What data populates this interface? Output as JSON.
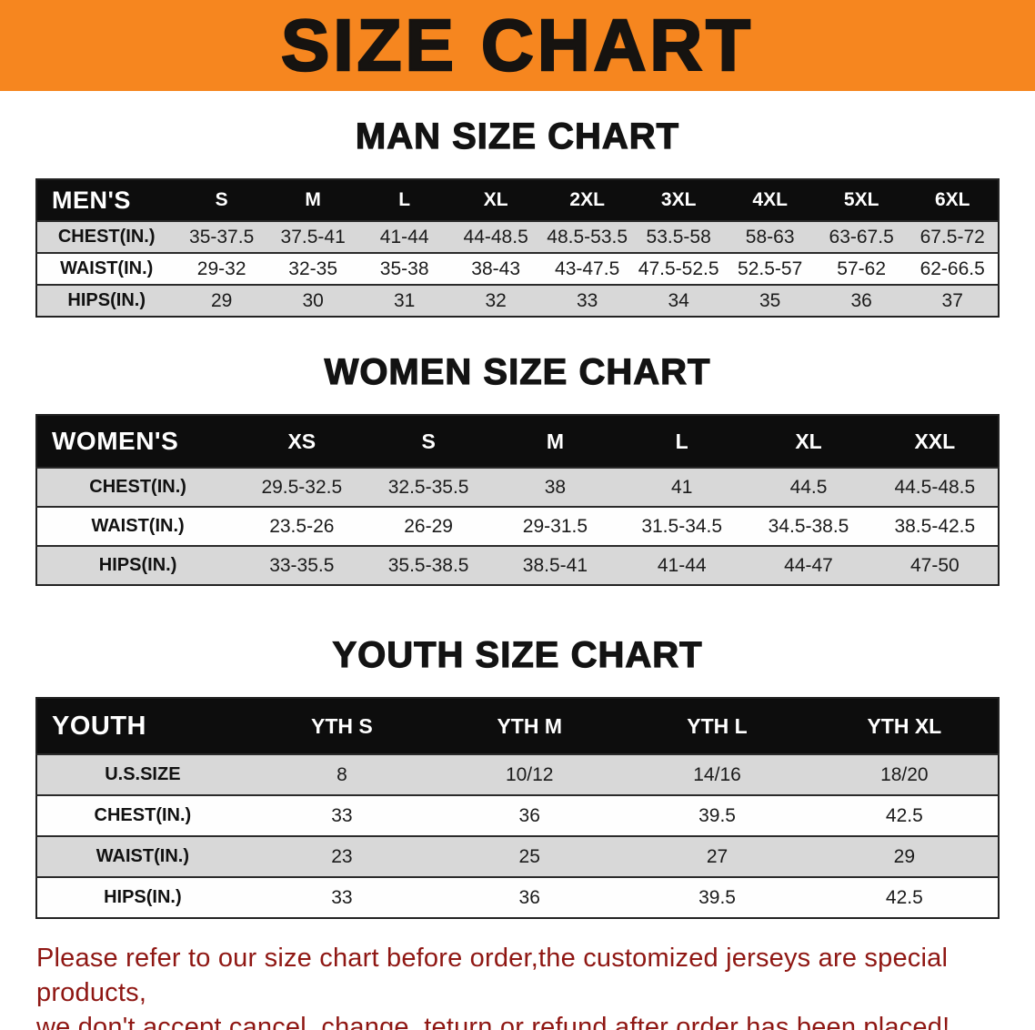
{
  "banner": {
    "title": "SIZE CHART"
  },
  "colors": {
    "banner_orange": "#f6861f",
    "table_header_black": "#0d0d0d",
    "row_stripe_gray": "#d8d8d8",
    "note_red": "#8f1713"
  },
  "sections": {
    "men": {
      "title": "MAN SIZE CHART",
      "table": {
        "header": [
          "MEN'S",
          "S",
          "M",
          "L",
          "XL",
          "2XL",
          "3XL",
          "4XL",
          "5XL",
          "6XL"
        ],
        "rows": [
          [
            "CHEST(IN.)",
            "35-37.5",
            "37.5-41",
            "41-44",
            "44-48.5",
            "48.5-53.5",
            "53.5-58",
            "58-63",
            "63-67.5",
            "67.5-72"
          ],
          [
            "WAIST(IN.)",
            "29-32",
            "32-35",
            "35-38",
            "38-43",
            "43-47.5",
            "47.5-52.5",
            "52.5-57",
            "57-62",
            "62-66.5"
          ],
          [
            "HIPS(IN.)",
            "29",
            "30",
            "31",
            "32",
            "33",
            "34",
            "35",
            "36",
            "37"
          ]
        ]
      }
    },
    "women": {
      "title": "WOMEN SIZE CHART",
      "table": {
        "header": [
          "WOMEN'S",
          "XS",
          "S",
          "M",
          "L",
          "XL",
          "XXL"
        ],
        "rows": [
          [
            "CHEST(IN.)",
            "29.5-32.5",
            "32.5-35.5",
            "38",
            "41",
            "44.5",
            "44.5-48.5"
          ],
          [
            "WAIST(IN.)",
            "23.5-26",
            "26-29",
            "29-31.5",
            "31.5-34.5",
            "34.5-38.5",
            "38.5-42.5"
          ],
          [
            "HIPS(IN.)",
            "33-35.5",
            "35.5-38.5",
            "38.5-41",
            "41-44",
            "44-47",
            "47-50"
          ]
        ]
      }
    },
    "youth": {
      "title": "YOUTH SIZE CHART",
      "table": {
        "header": [
          "YOUTH",
          "YTH S",
          "YTH M",
          "YTH L",
          "YTH XL"
        ],
        "rows": [
          [
            "U.S.SIZE",
            "8",
            "10/12",
            "14/16",
            "18/20"
          ],
          [
            "CHEST(IN.)",
            "33",
            "36",
            "39.5",
            "42.5"
          ],
          [
            "WAIST(IN.)",
            "23",
            "25",
            "27",
            "29"
          ],
          [
            "HIPS(IN.)",
            "33",
            "36",
            "39.5",
            "42.5"
          ]
        ]
      }
    }
  },
  "footer": {
    "line1": "Please refer to our size chart before order,the customized jerseys are special products,",
    "line2": "we don't accept cancel, change, teturn or refund after order has been placed!"
  }
}
